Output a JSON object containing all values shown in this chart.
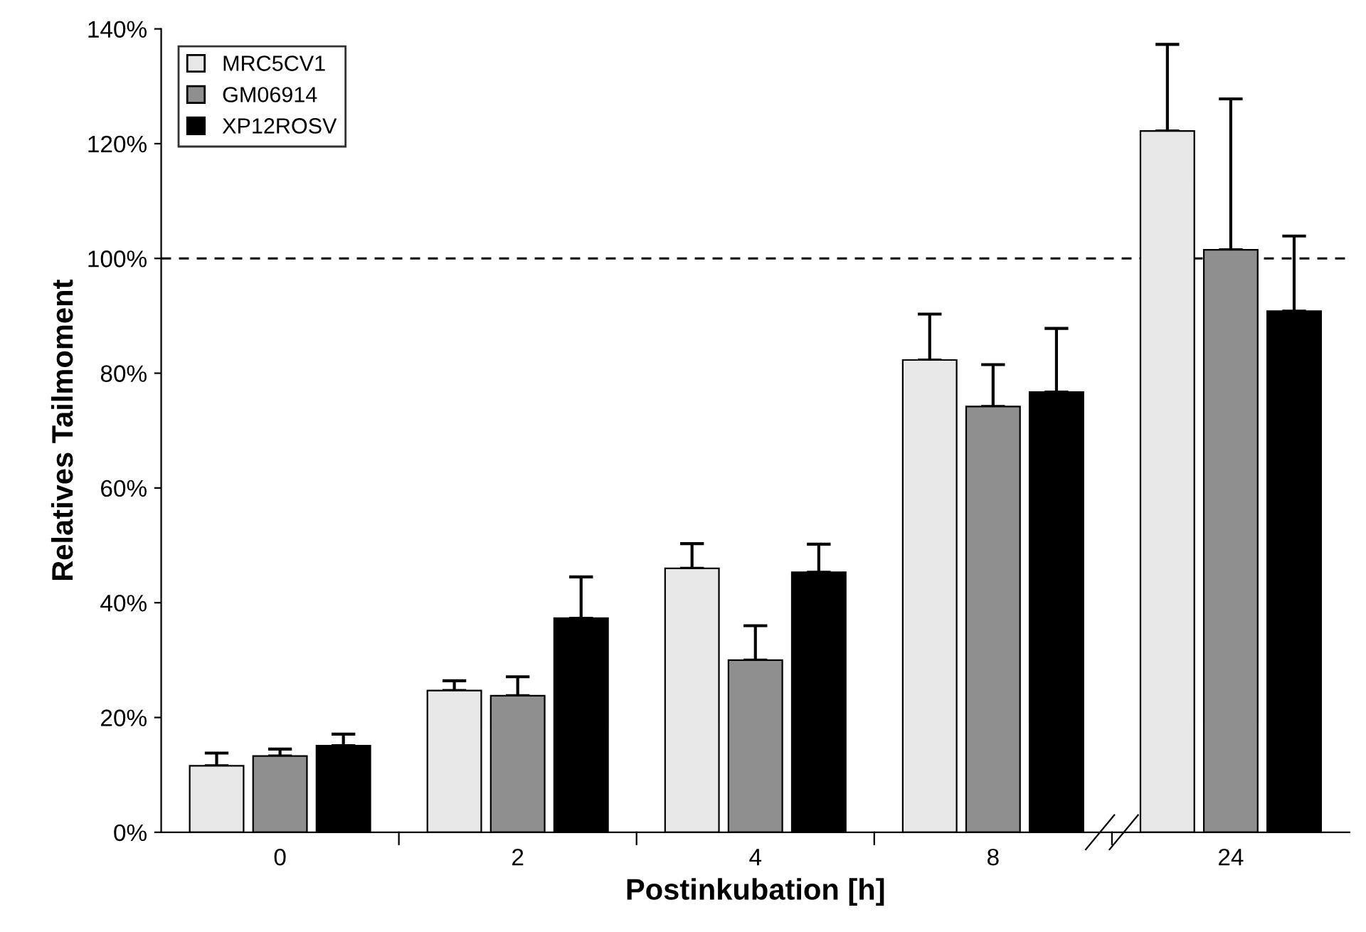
{
  "chart_data": {
    "type": "bar",
    "xlabel": "Postinkubation [h]",
    "ylabel": "Relatives Tailmoment",
    "categories": [
      "0",
      "2",
      "4",
      "8",
      "24"
    ],
    "series": [
      {
        "name": "MRC5CV1",
        "color": "#e8e8e8",
        "values": [
          11.6,
          24.7,
          46,
          82.3,
          122.2
        ],
        "errors": [
          2.2,
          1.7,
          4.3,
          8,
          15.1
        ]
      },
      {
        "name": "GM06914",
        "color": "#8f8f8f",
        "values": [
          13.3,
          23.8,
          30,
          74.2,
          101.5
        ],
        "errors": [
          1.2,
          3.3,
          6,
          7.3,
          26.3
        ]
      },
      {
        "name": "XP12ROSV",
        "color": "#000000",
        "values": [
          15.1,
          37.3,
          45.3,
          76.7,
          90.8
        ],
        "errors": [
          2,
          7.2,
          4.9,
          11.1,
          13.1
        ]
      }
    ],
    "ylim": [
      0,
      140
    ],
    "yticks": [
      {
        "value": 0,
        "label": "0%"
      },
      {
        "value": 20,
        "label": "20%"
      },
      {
        "value": 40,
        "label": "40%"
      },
      {
        "value": 60,
        "label": "60%"
      },
      {
        "value": 80,
        "label": "80%"
      },
      {
        "value": 100,
        "label": "100%"
      },
      {
        "value": 120,
        "label": "120%"
      },
      {
        "value": 140,
        "label": "140%"
      }
    ],
    "ref_lines": [
      {
        "axis": "y",
        "value": 100,
        "label": null,
        "color": "#000000",
        "line_style": "dashed"
      }
    ],
    "legend": "top left",
    "grid": false
  }
}
